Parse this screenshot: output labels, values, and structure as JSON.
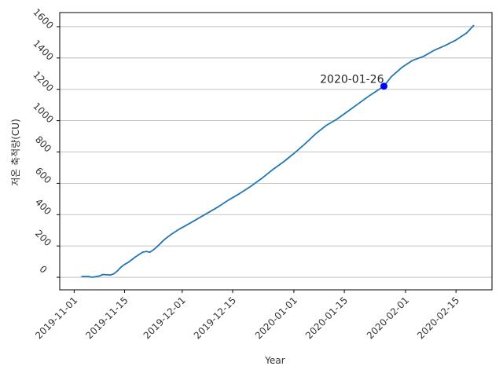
{
  "chart_data": {
    "type": "line",
    "xlabel": "Year",
    "ylabel": "저온 축적량(CU)",
    "x_is_date": true,
    "xlim": [
      "2019-10-28",
      "2020-02-25"
    ],
    "ylim": [
      -80,
      1690
    ],
    "xticks": [
      "2019-11-01",
      "2019-11-15",
      "2019-12-01",
      "2019-12-15",
      "2020-01-01",
      "2020-01-15",
      "2020-02-01",
      "2020-02-15"
    ],
    "yticks": [
      0,
      200,
      400,
      600,
      800,
      1000,
      1200,
      1400,
      1600
    ],
    "grid": "horizontal",
    "legend": "none",
    "series": [
      {
        "color": "#1f77b4",
        "x": [
          "2019-11-03",
          "2019-11-05",
          "2019-11-06",
          "2019-11-08",
          "2019-11-09",
          "2019-11-11",
          "2019-11-12",
          "2019-11-13",
          "2019-11-14",
          "2019-11-15",
          "2019-11-16",
          "2019-11-18",
          "2019-11-20",
          "2019-11-21",
          "2019-11-22",
          "2019-11-23",
          "2019-11-24",
          "2019-11-26",
          "2019-11-28",
          "2019-11-30",
          "2019-12-02",
          "2019-12-05",
          "2019-12-08",
          "2019-12-11",
          "2019-12-14",
          "2019-12-17",
          "2019-12-20",
          "2019-12-23",
          "2019-12-26",
          "2019-12-29",
          "2020-01-01",
          "2020-01-04",
          "2020-01-07",
          "2020-01-10",
          "2020-01-13",
          "2020-01-16",
          "2020-01-19",
          "2020-01-22",
          "2020-01-25",
          "2020-01-26",
          "2020-01-28",
          "2020-01-31",
          "2020-02-03",
          "2020-02-06",
          "2020-02-09",
          "2020-02-12",
          "2020-02-15",
          "2020-02-18",
          "2020-02-20"
        ],
        "y": [
          5,
          5,
          0,
          8,
          18,
          15,
          22,
          40,
          65,
          82,
          95,
          130,
          160,
          165,
          160,
          175,
          195,
          240,
          275,
          305,
          330,
          370,
          410,
          450,
          495,
          535,
          580,
          630,
          685,
          735,
          790,
          850,
          915,
          970,
          1010,
          1060,
          1110,
          1160,
          1205,
          1220,
          1280,
          1340,
          1385,
          1410,
          1450,
          1480,
          1515,
          1560,
          1610
        ]
      }
    ],
    "annotations": [
      {
        "text": "2020-01-26",
        "x": "2020-01-26",
        "y": 1220,
        "marker_color": "#0000ff"
      }
    ]
  },
  "colors": {
    "line": "#1f77b4",
    "marker": "#0000ff",
    "grid": "#b0b0b0",
    "axes": "#000000"
  }
}
